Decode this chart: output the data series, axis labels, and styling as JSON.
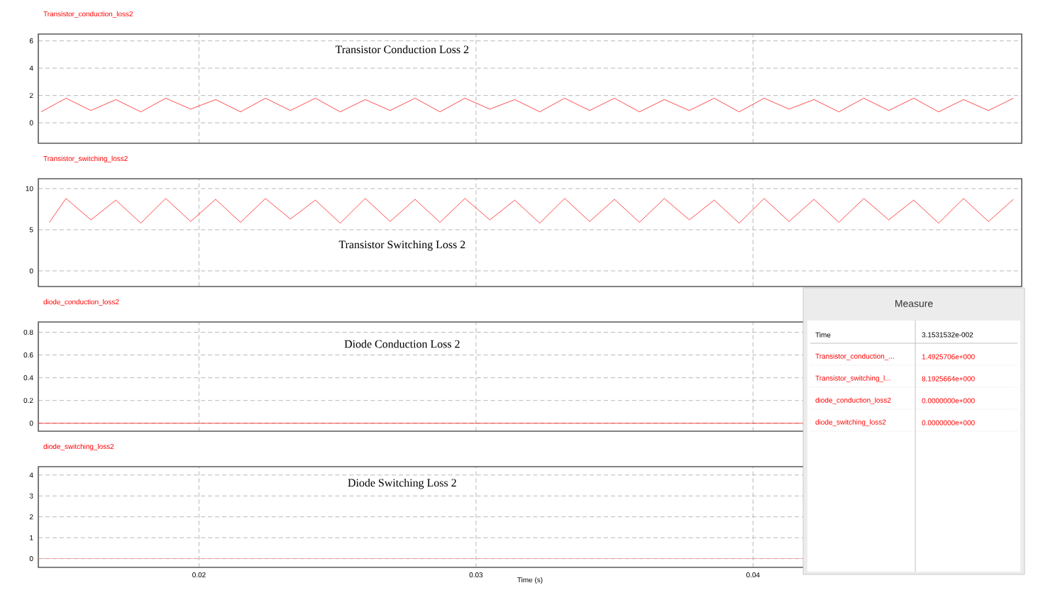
{
  "chart_data": [
    {
      "type": "line",
      "title": "Transistor_conduction_loss2",
      "annotations": [
        "Transistor Conduction Loss 2"
      ],
      "xlim": [
        0.0142,
        0.0497
      ],
      "xticks": [
        0.02,
        0.03,
        0.04
      ],
      "ylim": [
        -1.5,
        6.5
      ],
      "yticks": [
        0,
        2,
        4,
        6
      ],
      "grid": true,
      "tick_labels": "y",
      "series": [
        {
          "color": "#ff0000",
          "x": [
            0.0143,
            0.0152,
            0.0161,
            0.017,
            0.0179,
            0.0188,
            0.0197,
            0.0206,
            0.0215,
            0.0224,
            0.0233,
            0.0242,
            0.0251,
            0.026,
            0.0269,
            0.0278,
            0.0287,
            0.0296,
            0.0305,
            0.0314,
            0.0323,
            0.0332,
            0.0341,
            0.035,
            0.0359,
            0.0368,
            0.0377,
            0.0386,
            0.0395,
            0.0404,
            0.0413,
            0.0422,
            0.0431,
            0.044,
            0.0449,
            0.0458,
            0.0467,
            0.0476,
            0.0485,
            0.0494
          ],
          "values": [
            0.8,
            1.8,
            0.9,
            1.7,
            0.8,
            1.8,
            1.0,
            1.7,
            0.8,
            1.8,
            0.9,
            1.8,
            0.8,
            1.7,
            0.9,
            1.8,
            0.8,
            1.8,
            1.0,
            1.7,
            0.8,
            1.8,
            0.9,
            1.8,
            0.8,
            1.7,
            0.9,
            1.8,
            0.8,
            1.8,
            1.0,
            1.7,
            0.8,
            1.8,
            0.9,
            1.8,
            0.8,
            1.7,
            0.9,
            1.8
          ]
        }
      ]
    },
    {
      "type": "line",
      "title": "Transistor_switching_loss2",
      "annotations": [
        "Transistor Switching Loss 2"
      ],
      "xlim": [
        0.0142,
        0.0497
      ],
      "xticks": [
        0.02,
        0.03,
        0.04
      ],
      "ylim": [
        -1.9,
        11.2
      ],
      "yticks": [
        0,
        5,
        10
      ],
      "grid": true,
      "tick_labels": "y",
      "series": [
        {
          "color": "#ff0000",
          "x": [
            0.0146,
            0.0152,
            0.0161,
            0.017,
            0.0179,
            0.0188,
            0.0197,
            0.0206,
            0.0215,
            0.0224,
            0.0233,
            0.0242,
            0.0251,
            0.026,
            0.0269,
            0.0278,
            0.0287,
            0.0296,
            0.0305,
            0.0314,
            0.0323,
            0.0332,
            0.0341,
            0.035,
            0.0359,
            0.0368,
            0.0377,
            0.0386,
            0.0395,
            0.0404,
            0.0413,
            0.0422,
            0.0431,
            0.044,
            0.0449,
            0.0458,
            0.0467,
            0.0476,
            0.0485,
            0.0494
          ],
          "values": [
            5.9,
            8.8,
            6.2,
            8.6,
            5.8,
            8.8,
            6.0,
            8.7,
            5.9,
            8.8,
            6.3,
            8.6,
            5.8,
            8.8,
            6.0,
            8.7,
            5.9,
            8.8,
            6.2,
            8.6,
            5.8,
            8.8,
            6.0,
            8.7,
            5.9,
            8.8,
            6.2,
            8.6,
            5.8,
            8.8,
            6.0,
            8.7,
            5.9,
            8.8,
            6.2,
            8.6,
            5.8,
            8.8,
            6.0,
            8.7
          ]
        }
      ]
    },
    {
      "type": "line",
      "title": "diode_conduction_loss2",
      "annotations": [
        "Diode Conduction Loss 2"
      ],
      "xlim": [
        0.0142,
        0.0497
      ],
      "xticks": [
        0.02,
        0.03,
        0.04
      ],
      "ylim": [
        -0.07,
        0.89
      ],
      "yticks": [
        0,
        0.2,
        0.4,
        0.6,
        0.8
      ],
      "grid": true,
      "tick_labels": "y",
      "series": [
        {
          "color": "#ff0000",
          "x": [
            0.0142,
            0.0418
          ],
          "values": [
            0,
            0
          ]
        }
      ]
    },
    {
      "type": "line",
      "title": "diode_switching_loss2",
      "xlabel": "Time (s)",
      "annotations": [
        "Diode Switching Loss 2"
      ],
      "xlim": [
        0.0142,
        0.0497
      ],
      "xticks": [
        0.02,
        0.03,
        0.04
      ],
      "ylim": [
        -0.42,
        4.4
      ],
      "yticks": [
        0,
        1,
        2,
        3,
        4
      ],
      "grid": true,
      "series": [
        {
          "color": "#f08c8c",
          "x": [
            0.0142,
            0.0418
          ],
          "values": [
            0,
            0
          ]
        }
      ]
    },
    {
      "type": "other",
      "title": "Measure",
      "annotations": [
        "Time",
        "3.1531532e-002",
        "Transistor_conduction_...",
        "1.4925706e+000",
        "Transistor_switching_l...",
        "8.1925664e+000",
        "diode_conduction_loss2",
        "0.0000000e+000",
        "diode_switching_loss2",
        "0.0000000e+000"
      ]
    }
  ]
}
